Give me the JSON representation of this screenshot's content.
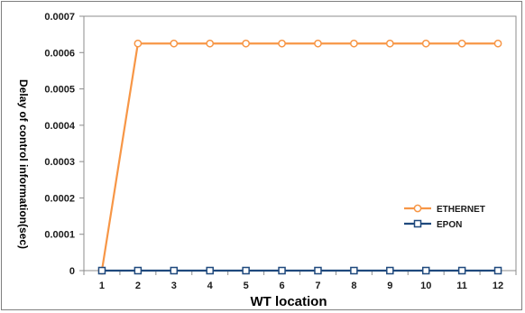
{
  "chart_data": {
    "type": "line",
    "xlabel": "WT location",
    "ylabel": "Delay of control information(sec)",
    "categories": [
      "1",
      "2",
      "3",
      "4",
      "5",
      "6",
      "7",
      "8",
      "9",
      "10",
      "11",
      "12"
    ],
    "y_ticks": [
      "0",
      "0.0001",
      "0.0002",
      "0.0003",
      "0.0004",
      "0.0005",
      "0.0006",
      "0.0007"
    ],
    "ylim": [
      0,
      0.0007
    ],
    "grid": false,
    "legend_position": "lower-right",
    "series": [
      {
        "name": "ETHERNET",
        "color": "#f79646",
        "marker": "circle",
        "values": [
          0,
          0.000625,
          0.000625,
          0.000625,
          0.000625,
          0.000625,
          0.000625,
          0.000625,
          0.000625,
          0.000625,
          0.000625,
          0.000625
        ]
      },
      {
        "name": "EPON",
        "color": "#1f497d",
        "marker": "square",
        "values": [
          0,
          0,
          0,
          0,
          0,
          0,
          0,
          0,
          0,
          0,
          0,
          0
        ]
      }
    ]
  }
}
